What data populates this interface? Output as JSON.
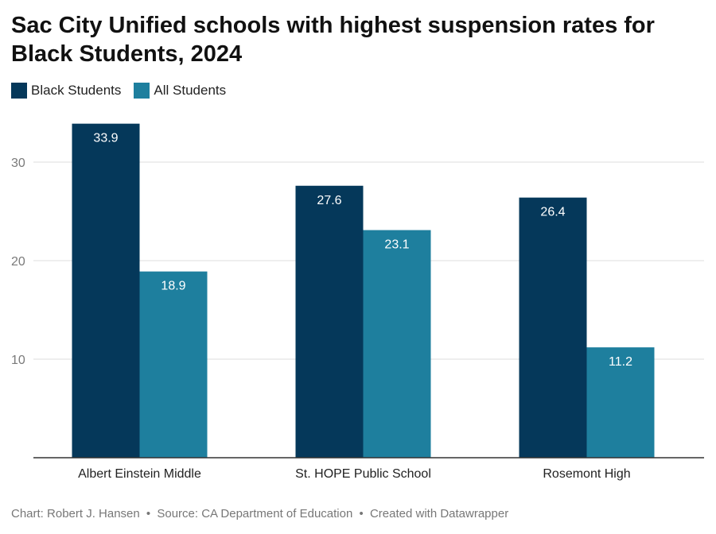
{
  "chart_data": {
    "type": "bar",
    "title": "Sac City Unified schools with highest suspension rates for Black Students, 2024",
    "categories": [
      "Albert Einstein Middle",
      "St. HOPE Public School",
      "Rosemont High"
    ],
    "series": [
      {
        "name": "Black Students",
        "values": [
          33.9,
          27.6,
          26.4
        ],
        "color": "#05385a"
      },
      {
        "name": "All Students",
        "values": [
          18.9,
          23.1,
          11.2
        ],
        "color": "#1e7f9e"
      }
    ],
    "ylim": [
      0,
      35
    ],
    "yticks": [
      10,
      20,
      30
    ],
    "grid": true,
    "legend_position": "top-left",
    "xlabel": "",
    "ylabel": ""
  },
  "footer": {
    "credit": "Chart: Robert J. Hansen",
    "source": "Source: CA Department of Education",
    "tool": "Created with Datawrapper",
    "separator": "•"
  }
}
